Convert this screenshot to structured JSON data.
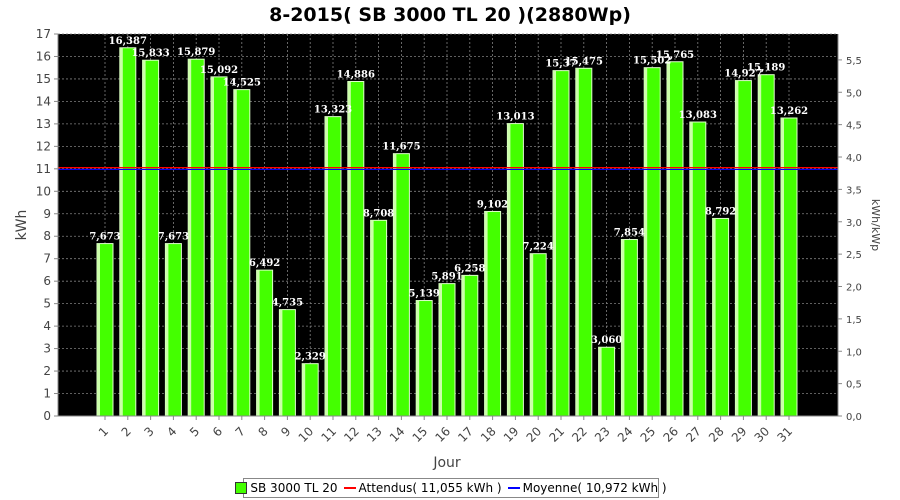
{
  "colors": {
    "bar": "#44ff00",
    "attendus": "#ff0000",
    "moyenne": "#0000ff",
    "plot_bg": "#000000",
    "grid": "#7f7f7f"
  },
  "chart_data": {
    "type": "bar",
    "title": "8-2015( SB 3000 TL 20 )(2880Wp)",
    "xlabel": "Jour",
    "ylabel": "kWh",
    "y2label": "kWh/kWp",
    "ylim": [
      0,
      17
    ],
    "y2lim": [
      0,
      5.9
    ],
    "yticks": [
      "0",
      "1",
      "2",
      "3",
      "4",
      "5",
      "6",
      "7",
      "8",
      "9",
      "10",
      "11",
      "12",
      "13",
      "14",
      "15",
      "16",
      "17"
    ],
    "y2ticks": [
      "0,0",
      "0,5",
      "1,0",
      "1,5",
      "2,0",
      "2,5",
      "3,0",
      "3,5",
      "4,0",
      "4,5",
      "5,0",
      "5,5"
    ],
    "categories": [
      "1",
      "2",
      "3",
      "4",
      "5",
      "6",
      "7",
      "8",
      "9",
      "10",
      "11",
      "12",
      "13",
      "14",
      "15",
      "16",
      "17",
      "18",
      "19",
      "20",
      "21",
      "22",
      "23",
      "24",
      "25",
      "26",
      "27",
      "28",
      "29",
      "30",
      "31"
    ],
    "series": [
      {
        "name": "SB 3000 TL 20",
        "values": [
          7.673,
          16.387,
          15.833,
          7.673,
          15.879,
          15.092,
          14.525,
          6.492,
          4.735,
          2.329,
          13.323,
          14.886,
          8.708,
          11.675,
          5.139,
          5.891,
          6.258,
          9.102,
          13.013,
          7.224,
          15.37,
          15.475,
          3.06,
          7.854,
          15.502,
          15.765,
          13.083,
          8.792,
          14.927,
          15.189,
          13.262
        ],
        "labels": [
          "7,673",
          "16,387",
          "15,833",
          "7,673",
          "15,879",
          "15,092",
          "14,525",
          "6,492",
          "4,735",
          "2,329",
          "13,323",
          "14,886",
          "8,708",
          "11,675",
          "5,139",
          "5,891",
          "6,258",
          "9,102",
          "13,013",
          "7,224",
          "15,37",
          "15,475",
          "3,060",
          "7,854",
          "15,502",
          "15,765",
          "13,083",
          "8,792",
          "14,927",
          "15,189",
          "13,262"
        ]
      }
    ],
    "lines": [
      {
        "name": "Attendus",
        "value": 11.055
      },
      {
        "name": "Moyenne",
        "value": 10.972
      }
    ],
    "grid": true,
    "legend_position": "bottom"
  },
  "legend": {
    "bar_label": "SB 3000 TL 20",
    "attendus_label": "Attendus( 11,055 kWh )",
    "moyenne_label": "Moyenne( 10,972 kWh )"
  }
}
